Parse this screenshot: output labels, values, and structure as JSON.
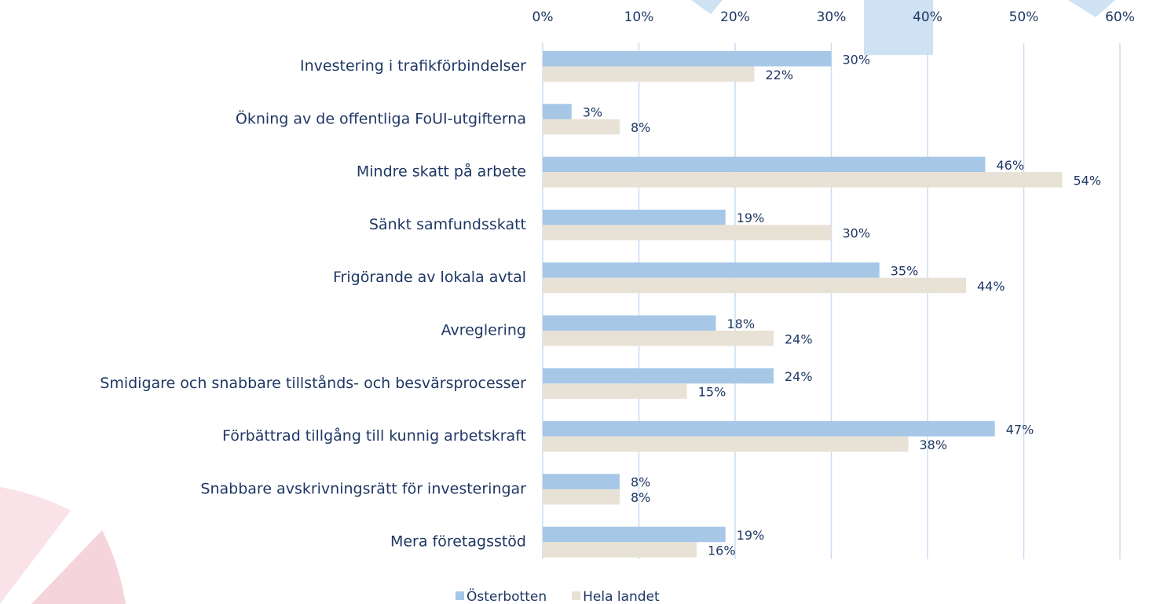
{
  "chart_data": {
    "type": "hbar",
    "categories": [
      "Investering i trafikförbindelser",
      "Ökning av de offentliga FoUI-utgifterna",
      "Mindre skatt på arbete",
      "Sänkt samfundsskatt",
      "Frigörande av lokala avtal",
      "Avreglering",
      "Smidigare och snabbare tillstånds- och besvärsprocesser",
      "Förbättrad tillgång till kunnig arbetskraft",
      "Snabbare avskrivningsrätt för investeringar",
      "Mera företagsstöd"
    ],
    "series": [
      {
        "name": "Österbotten",
        "color": "#a7c7e7",
        "values": [
          30,
          3,
          46,
          19,
          35,
          18,
          24,
          47,
          8,
          19
        ],
        "value_labels": [
          "30%",
          "3%",
          "46%",
          "19%",
          "35%",
          "18%",
          "24%",
          "47%",
          "8%",
          "19%"
        ]
      },
      {
        "name": "Hela landet",
        "color": "#e8e1d6",
        "values": [
          22,
          8,
          54,
          30,
          44,
          24,
          15,
          38,
          8,
          16
        ],
        "value_labels": [
          "22%",
          "8%",
          "54%",
          "30%",
          "44%",
          "24%",
          "15%",
          "38%",
          "8%",
          "16%"
        ]
      }
    ],
    "xlim": [
      0,
      60
    ],
    "xticks": [
      {
        "value": 0,
        "label": "0%"
      },
      {
        "value": 10,
        "label": "10%"
      },
      {
        "value": 20,
        "label": "20%"
      },
      {
        "value": 30,
        "label": "30%"
      },
      {
        "value": 40,
        "label": "40%"
      },
      {
        "value": 50,
        "label": "50%"
      },
      {
        "value": 60,
        "label": "60%"
      }
    ],
    "grid": true,
    "legend": "bottom"
  }
}
